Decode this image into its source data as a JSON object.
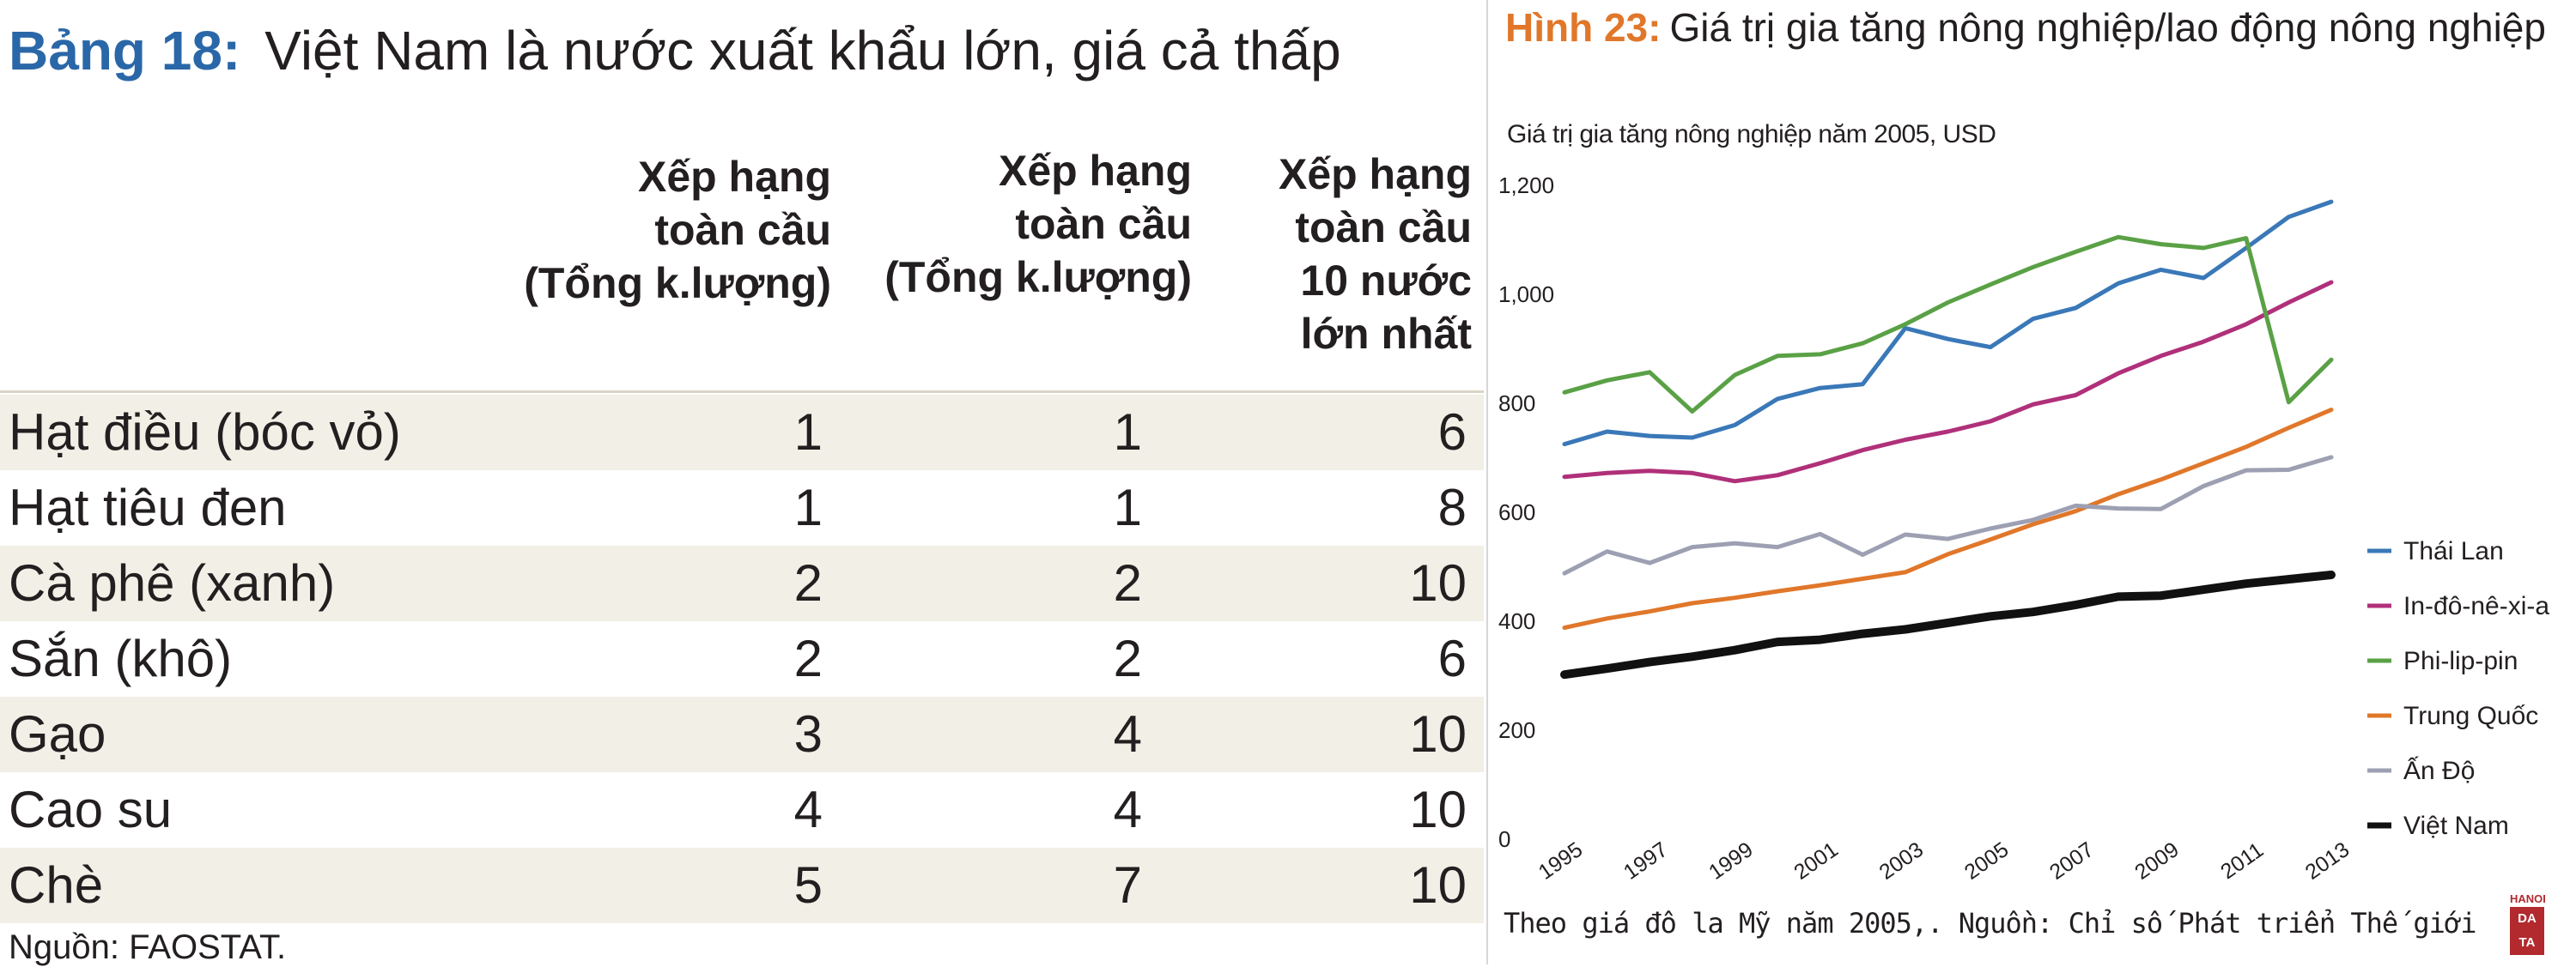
{
  "table": {
    "label": "Bảng 18:",
    "title": "Việt Nam là nước xuất khẩu lớn, giá cả thấp",
    "columns": [
      "Xếp hạng\ntoàn cầu\n(Tổng k.lượng)",
      "Xếp hạng\ntoàn cầu\n(Tổng k.lượng)",
      "Xếp hạng\ntoàn cầu\n10 nước\nlớn nhất"
    ],
    "rows": [
      {
        "name": "Hạt điều (bóc vỏ)",
        "v1": "1",
        "v2": "1",
        "v3": "6"
      },
      {
        "name": "Hạt tiêu đen",
        "v1": "1",
        "v2": "1",
        "v3": "8"
      },
      {
        "name": "Cà phê (xanh)",
        "v1": "2",
        "v2": "2",
        "v3": "10"
      },
      {
        "name": "Sắn (khô)",
        "v1": "2",
        "v2": "2",
        "v3": "6"
      },
      {
        "name": "Gạo",
        "v1": "3",
        "v2": "4",
        "v3": "10"
      },
      {
        "name": "Cao su",
        "v1": "4",
        "v2": "4",
        "v3": "10"
      },
      {
        "name": "Chè",
        "v1": "5",
        "v2": "7",
        "v3": "10"
      }
    ],
    "source": "Nguồn: FAOSTAT."
  },
  "figure": {
    "label": "Hình 23:",
    "title": "Giá trị gia tăng nông nghiệp/lao động nông nghiệp",
    "subtitle": "Giá trị gia tăng nông nghiệp năm 2005, USD",
    "note": "Theo giá đô la Mỹ năm 2005,. Nguồn: Chỉ số Phát triển Thế giới"
  },
  "logo": {
    "top": "HANOI",
    "line1": "DA",
    "line2": "TA"
  },
  "chart_data": {
    "type": "line",
    "x": [
      1995,
      1996,
      1997,
      1998,
      1999,
      2000,
      2001,
      2002,
      2003,
      2004,
      2005,
      2006,
      2007,
      2008,
      2009,
      2010,
      2011,
      2012,
      2013
    ],
    "x_tick_labels": [
      "1995",
      "1997",
      "1999",
      "2001",
      "2003",
      "2005",
      "2007",
      "2009",
      "2011",
      "2013"
    ],
    "y_ticks": [
      0,
      200,
      400,
      600,
      800,
      1000,
      1200
    ],
    "y_tick_labels": [
      "0",
      "200",
      "400",
      "600",
      "800",
      "1,000",
      "1,200"
    ],
    "ylim": [
      0,
      1200
    ],
    "grid": false,
    "legend_position": "right",
    "series": [
      {
        "name": "Thái Lan",
        "color": "#3a78b8",
        "line_width": 5,
        "values": [
          725,
          748,
          740,
          737,
          760,
          808,
          828,
          835,
          938,
          918,
          903,
          955,
          975,
          1020,
          1045,
          1030,
          1085,
          1142,
          1170
        ]
      },
      {
        "name": "In-đô-nê-xi-a",
        "color": "#b0307a",
        "line_width": 5,
        "values": [
          665,
          672,
          676,
          672,
          657,
          668,
          690,
          714,
          733,
          748,
          767,
          798,
          815,
          855,
          887,
          913,
          945,
          985,
          1022
        ]
      },
      {
        "name": "Phi-lip-pin",
        "color": "#5aa146",
        "line_width": 5,
        "values": [
          820,
          842,
          857,
          785,
          852,
          887,
          890,
          910,
          945,
          985,
          1018,
          1050,
          1078,
          1105,
          1092,
          1085,
          1103,
          802,
          880
        ]
      },
      {
        "name": "Trung Quốc",
        "color": "#e0772a",
        "line_width": 5,
        "values": [
          388,
          405,
          418,
          433,
          443,
          455,
          466,
          478,
          490,
          523,
          550,
          578,
          602,
          633,
          660,
          690,
          720,
          755,
          788
        ]
      },
      {
        "name": "Ấn Độ",
        "color": "#9da0b2",
        "line_width": 5,
        "values": [
          488,
          528,
          507,
          536,
          543,
          536,
          560,
          522,
          559,
          551,
          570,
          586,
          612,
          607,
          606,
          648,
          677,
          678,
          701
        ]
      },
      {
        "name": "Việt Nam",
        "color": "#111111",
        "line_width": 10,
        "values": [
          302,
          313,
          325,
          335,
          347,
          362,
          366,
          377,
          385,
          397,
          409,
          417,
          430,
          445,
          447,
          458,
          469,
          477,
          485
        ]
      }
    ]
  }
}
